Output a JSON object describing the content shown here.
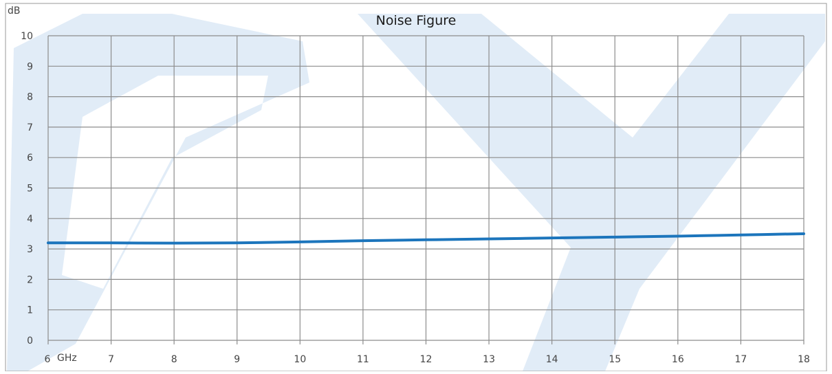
{
  "chart_data": {
    "type": "line",
    "title": "Noise Figure",
    "y_unit": "dB",
    "x_unit": "GHz",
    "xlim": [
      6,
      18
    ],
    "ylim": [
      0,
      10
    ],
    "x_ticks": [
      6,
      7,
      8,
      9,
      10,
      11,
      12,
      13,
      14,
      15,
      16,
      17,
      18
    ],
    "y_ticks": [
      0,
      1,
      2,
      3,
      4,
      5,
      6,
      7,
      8,
      9,
      10
    ],
    "grid": true,
    "legend": "none",
    "series": [
      {
        "color": "#1c75bc",
        "x": [
          6,
          7,
          8,
          9,
          10,
          11,
          12,
          13,
          14,
          15,
          16,
          17,
          18
        ],
        "y": [
          3.2,
          3.2,
          3.19,
          3.2,
          3.23,
          3.27,
          3.3,
          3.33,
          3.36,
          3.39,
          3.42,
          3.46,
          3.5
        ]
      }
    ]
  },
  "colors": {
    "grid": "#8c8c8c",
    "frame": "#9a9a9a",
    "watermark": "#d6e4f4"
  }
}
